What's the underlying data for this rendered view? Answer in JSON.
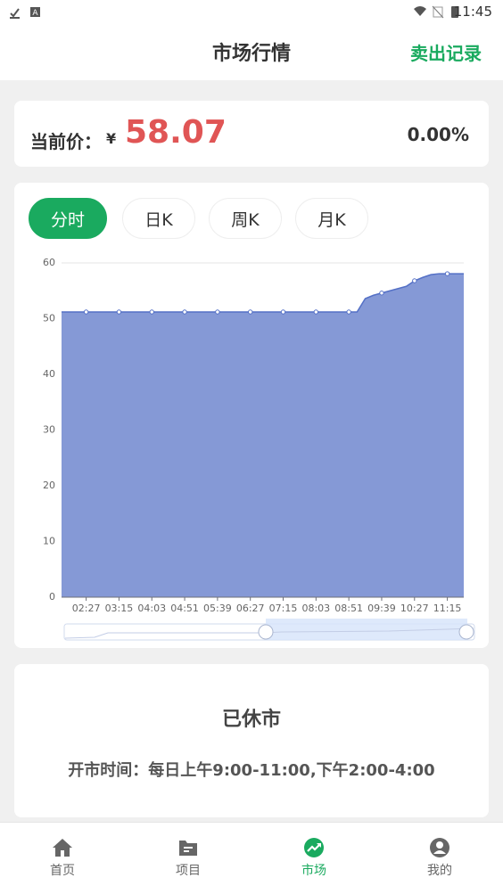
{
  "status_bar": {
    "time": "11:45"
  },
  "header": {
    "title": "市场行情",
    "action": "卖出记录"
  },
  "price_card": {
    "label": "当前价：",
    "currency": "¥",
    "price": "58.07",
    "change": "0.00%"
  },
  "tabs": [
    "分时",
    "日K",
    "周K",
    "月K"
  ],
  "chart_data": {
    "type": "area",
    "color": "#5470c6",
    "fill": "#8599d6",
    "grid": true,
    "categories": [
      null,
      null,
      null,
      "02:27",
      null,
      null,
      null,
      "03:15",
      null,
      null,
      null,
      "04:03",
      null,
      null,
      null,
      "04:51",
      null,
      null,
      null,
      "05:39",
      null,
      null,
      null,
      "06:27",
      null,
      null,
      null,
      "07:15",
      null,
      null,
      null,
      "08:03",
      null,
      null,
      null,
      "08:51",
      null,
      null,
      null,
      "09:39",
      null,
      null,
      null,
      "10:27",
      null,
      null,
      null,
      "11:15",
      null,
      null
    ],
    "values": [
      51.2,
      51.2,
      51.2,
      51.2,
      51.2,
      51.2,
      51.2,
      51.2,
      51.2,
      51.2,
      51.2,
      51.2,
      51.2,
      51.2,
      51.2,
      51.2,
      51.2,
      51.2,
      51.2,
      51.2,
      51.2,
      51.2,
      51.2,
      51.2,
      51.2,
      51.2,
      51.2,
      51.2,
      51.2,
      51.2,
      51.2,
      51.2,
      51.2,
      51.2,
      51.2,
      51.2,
      51.2,
      53.6,
      54.2,
      54.6,
      55.0,
      55.4,
      55.8,
      56.8,
      57.4,
      57.9,
      58.07,
      58.07,
      58.07,
      58.07
    ],
    "ylim": [
      0,
      60
    ],
    "yticks": [
      0,
      10,
      20,
      30,
      40,
      50,
      60
    ]
  },
  "closed_card": {
    "title": "已休市",
    "hours": "开市时间：每日上午9:00-11:00,下午2:00-4:00"
  },
  "nav": [
    "首页",
    "项目",
    "市场",
    "我的"
  ]
}
